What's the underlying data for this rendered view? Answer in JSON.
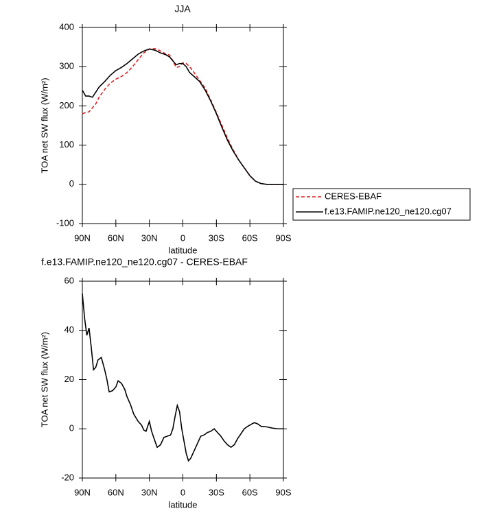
{
  "chart_data": [
    {
      "type": "line",
      "title": "JJA",
      "x_label": "latitude",
      "y_label": "TOA net SW flux (W/m²)",
      "x": [
        90,
        87,
        84,
        81,
        78,
        75,
        70,
        65,
        60,
        55,
        50,
        45,
        40,
        35,
        30,
        25,
        20,
        15,
        12,
        9,
        6,
        3,
        0,
        -3,
        -6,
        -10,
        -15,
        -20,
        -25,
        -30,
        -35,
        -40,
        -45,
        -50,
        -55,
        -60,
        -65,
        -70,
        -75,
        -80,
        -85,
        -90
      ],
      "series": [
        {
          "name": "CERES-EBAF",
          "color": "#e02020",
          "dash": true,
          "values": [
            180,
            183,
            185,
            195,
            205,
            222,
            242,
            258,
            268,
            275,
            285,
            300,
            318,
            335,
            345,
            346,
            340,
            332,
            330,
            315,
            298,
            300,
            310,
            308,
            300,
            285,
            265,
            245,
            215,
            183,
            150,
            117,
            88,
            62,
            42,
            22,
            8,
            2,
            0,
            0,
            0,
            0
          ]
        },
        {
          "name": "f.e13.FAMIP.ne120_ne120.cg07",
          "color": "#000000",
          "dash": false,
          "values": [
            240,
            225,
            225,
            222,
            235,
            248,
            262,
            278,
            290,
            298,
            308,
            320,
            332,
            340,
            345,
            342,
            335,
            330,
            325,
            315,
            305,
            308,
            308,
            300,
            285,
            275,
            262,
            240,
            212,
            180,
            145,
            112,
            85,
            62,
            42,
            22,
            8,
            2,
            0,
            0,
            0,
            0
          ]
        }
      ],
      "xlim": [
        90,
        -90
      ],
      "xticks": [
        {
          "value": 90,
          "label": "90N"
        },
        {
          "value": 60,
          "label": "60N"
        },
        {
          "value": 30,
          "label": "30N"
        },
        0,
        {
          "value": -30,
          "label": "30S"
        },
        {
          "value": -60,
          "label": "60S"
        },
        {
          "value": -90,
          "label": "90S"
        }
      ],
      "ylim": [
        -100,
        400
      ],
      "yticks": [
        -100,
        0,
        100,
        200,
        300,
        400
      ],
      "legend": "right"
    },
    {
      "type": "line",
      "title": "f.e13.FAMIP.ne120_ne120.cg07 - CERES-EBAF",
      "x_label": "latitude",
      "y_label": "TOA net SW flux (W/m²)",
      "x": [
        90,
        88,
        86,
        84,
        82,
        80,
        78,
        76,
        73,
        70,
        68,
        66,
        63,
        60,
        58,
        55,
        52,
        50,
        47,
        44,
        40,
        37,
        35,
        33,
        30,
        28,
        25,
        23,
        20,
        17,
        14,
        11,
        9,
        7,
        5,
        3,
        1,
        -1,
        -3,
        -5,
        -7,
        -10,
        -13,
        -16,
        -19,
        -22,
        -25,
        -28,
        -31,
        -34,
        -37,
        -40,
        -43,
        -46,
        -49,
        -52,
        -55,
        -58,
        -61,
        -64,
        -67,
        -70,
        -75,
        -80,
        -85,
        -90
      ],
      "values": [
        55,
        45,
        38,
        41,
        33,
        24,
        25,
        28,
        29,
        24,
        20,
        15,
        15.5,
        17,
        19.5,
        18.5,
        16,
        13,
        10,
        6,
        3,
        1.5,
        -0.5,
        -1,
        3,
        -1,
        -5,
        -7.5,
        -6.5,
        -3.5,
        -3,
        -2.5,
        0,
        5,
        9.5,
        7,
        0,
        -5,
        -10,
        -13,
        -12,
        -9,
        -6,
        -3,
        -2.5,
        -1.5,
        -1,
        0,
        -1.5,
        -3,
        -5,
        -6.5,
        -7.5,
        -6.5,
        -4,
        -2,
        0,
        1,
        1.8,
        2.5,
        2,
        1,
        0.8,
        0.3,
        0,
        0
      ],
      "color": "#000000",
      "xlim": [
        90,
        -90
      ],
      "xticks": [
        {
          "value": 90,
          "label": "90N"
        },
        {
          "value": 60,
          "label": "60N"
        },
        {
          "value": 30,
          "label": "30N"
        },
        0,
        {
          "value": -30,
          "label": "30S"
        },
        {
          "value": -60,
          "label": "60S"
        },
        {
          "value": -90,
          "label": "90S"
        }
      ],
      "ylim": [
        -20,
        60
      ],
      "yticks": [
        -20,
        0,
        20,
        40,
        60
      ]
    }
  ]
}
